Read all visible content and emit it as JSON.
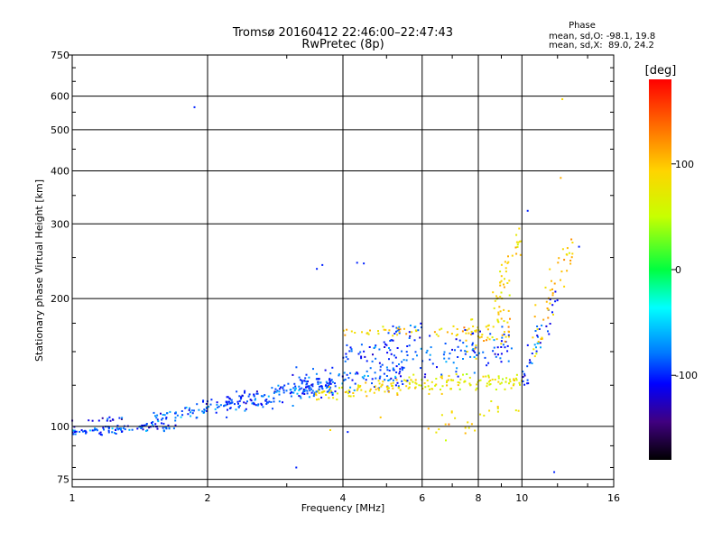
{
  "chart_data": {
    "type": "scatter",
    "title": "Tromsø 20160412 22:46:00–22:47:43",
    "subtitle": "RwPretec (8p)",
    "xlabel": "Frequency [MHz]",
    "ylabel": "Stationary phase Virtual Height [km]",
    "x_scale": "log",
    "y_scale": "log",
    "xlim": [
      1,
      16
    ],
    "ylim": [
      72,
      750
    ],
    "x_ticks": [
      1,
      2,
      4,
      6,
      8,
      10,
      16
    ],
    "x_tick_labels": [
      "1",
      "2",
      "4",
      "6",
      "8",
      "10",
      "16"
    ],
    "y_ticks": [
      75,
      100,
      200,
      300,
      400,
      500,
      600,
      750
    ],
    "y_tick_labels": [
      "75",
      "100",
      "200",
      "300",
      "400",
      "500",
      "600",
      "750"
    ],
    "grid": true,
    "phase_legend": {
      "title": "Phase",
      "line_o": "mean, sd,O: -98.1, 19.8",
      "line_x": "mean, sd,X:  89.0, 24.2"
    },
    "colorbar": {
      "label": "[deg]",
      "ticks": [
        100,
        0,
        -100
      ],
      "tick_labels": [
        "100",
        "0",
        "-100"
      ],
      "range": [
        -180,
        180
      ]
    },
    "clusters": [
      {
        "x0": 1.0,
        "x1": 1.7,
        "h0": 97,
        "h1": 100,
        "phase": -95,
        "spread_h": 2.0,
        "count": 90
      },
      {
        "x0": 1.0,
        "x1": 1.3,
        "h0": 104,
        "h1": 104,
        "phase": -110,
        "spread_h": 1.5,
        "count": 14
      },
      {
        "x0": 1.5,
        "x1": 2.3,
        "h0": 104,
        "h1": 115,
        "phase": -85,
        "spread_h": 3.5,
        "count": 80
      },
      {
        "x0": 2.2,
        "x1": 3.8,
        "h0": 112,
        "h1": 125,
        "phase": -90,
        "spread_h": 6.0,
        "count": 170
      },
      {
        "x0": 3.0,
        "x1": 5.5,
        "h0": 124,
        "h1": 135,
        "phase": -90,
        "spread_h": 10.0,
        "count": 110
      },
      {
        "x0": 3.4,
        "x1": 5.5,
        "h0": 118,
        "h1": 125,
        "phase": 85,
        "spread_h": 4.0,
        "count": 70
      },
      {
        "x0": 4.0,
        "x1": 6.0,
        "h0": 148,
        "h1": 170,
        "phase": -95,
        "spread_h": 8.0,
        "count": 50
      },
      {
        "x0": 4.0,
        "x1": 8.0,
        "h0": 168,
        "h1": 168,
        "phase": 95,
        "spread_h": 4.0,
        "count": 45
      },
      {
        "x0": 5.5,
        "x1": 10.0,
        "h0": 125,
        "h1": 128,
        "phase": 75,
        "spread_h": 6.0,
        "count": 110
      },
      {
        "x0": 5.0,
        "x1": 9.5,
        "h0": 140,
        "h1": 155,
        "phase": -90,
        "spread_h": 14.0,
        "count": 110
      },
      {
        "x0": 7.5,
        "x1": 9.5,
        "h0": 160,
        "h1": 175,
        "phase": 95,
        "spread_h": 15.0,
        "count": 45
      },
      {
        "x0": 8.5,
        "x1": 10.0,
        "h0": 180,
        "h1": 280,
        "phase": 90,
        "spread_h": 25.0,
        "count": 45
      },
      {
        "x0": 10.0,
        "x1": 12.0,
        "h0": 130,
        "h1": 200,
        "phase": -95,
        "spread_h": 15.0,
        "count": 40
      },
      {
        "x0": 10.5,
        "x1": 13.0,
        "h0": 150,
        "h1": 270,
        "phase": 100,
        "spread_h": 25.0,
        "count": 45
      },
      {
        "x0": 6.0,
        "x1": 10.0,
        "h0": 95,
        "h1": 110,
        "phase": 90,
        "spread_h": 8.0,
        "count": 25
      }
    ],
    "isolated_points": [
      {
        "x": 1.87,
        "h": 565,
        "phase": -100
      },
      {
        "x": 3.5,
        "h": 235,
        "phase": -100
      },
      {
        "x": 3.6,
        "h": 240,
        "phase": -100
      },
      {
        "x": 4.3,
        "h": 243,
        "phase": -100
      },
      {
        "x": 4.45,
        "h": 242,
        "phase": -100
      },
      {
        "x": 3.15,
        "h": 80,
        "phase": -100
      },
      {
        "x": 12.3,
        "h": 590,
        "phase": 90
      },
      {
        "x": 12.2,
        "h": 385,
        "phase": 110
      },
      {
        "x": 10.3,
        "h": 322,
        "phase": -100
      },
      {
        "x": 11.8,
        "h": 78,
        "phase": -100
      },
      {
        "x": 4.85,
        "h": 105,
        "phase": 100
      },
      {
        "x": 3.75,
        "h": 98,
        "phase": 90
      },
      {
        "x": 4.1,
        "h": 97,
        "phase": -100
      },
      {
        "x": 13.4,
        "h": 265,
        "phase": -100
      }
    ]
  }
}
